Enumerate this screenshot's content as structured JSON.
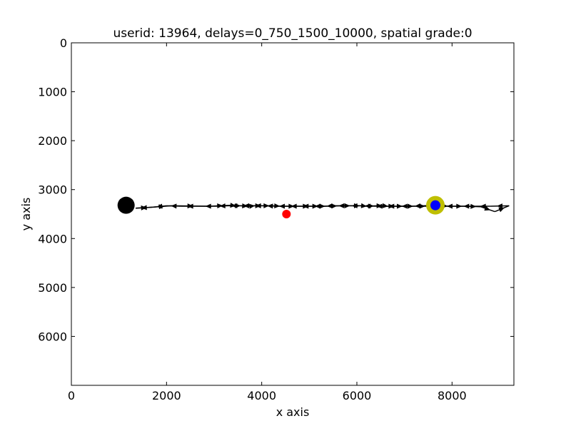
{
  "chart_data": {
    "type": "scatter",
    "title": "userid: 13964, delays=0_750_1500_10000, spatial grade:0",
    "xlabel": "x axis",
    "ylabel": "y axis",
    "xlim": [
      0,
      9300
    ],
    "ylim": [
      0,
      7000
    ],
    "y_inverted": true,
    "x_ticks": [
      "0",
      "2000",
      "4000",
      "6000",
      "8000"
    ],
    "y_ticks": [
      "0",
      "1000",
      "2000",
      "3000",
      "4000",
      "5000",
      "6000"
    ],
    "grid": false,
    "legend": "none",
    "trajectory": {
      "color": "#000000",
      "points": [
        [
          7650,
          3320
        ],
        [
          7400,
          3330
        ],
        [
          7150,
          3340
        ],
        [
          6850,
          3340
        ],
        [
          6600,
          3340
        ],
        [
          6350,
          3340
        ],
        [
          6100,
          3330
        ],
        [
          5800,
          3330
        ],
        [
          5550,
          3330
        ],
        [
          5300,
          3340
        ],
        [
          5050,
          3340
        ],
        [
          4800,
          3340
        ],
        [
          4550,
          3340
        ],
        [
          4300,
          3340
        ],
        [
          4050,
          3330
        ],
        [
          3800,
          3330
        ],
        [
          3550,
          3330
        ],
        [
          3300,
          3330
        ],
        [
          3050,
          3340
        ],
        [
          2700,
          3340
        ],
        [
          2300,
          3340
        ],
        [
          2000,
          3330
        ],
        [
          1700,
          3360
        ],
        [
          1350,
          3380
        ],
        [
          1350,
          3380
        ],
        [
          1700,
          3360
        ],
        [
          2100,
          3330
        ],
        [
          2900,
          3340
        ],
        [
          3350,
          3320
        ],
        [
          3450,
          3330
        ],
        [
          3550,
          3330
        ],
        [
          3750,
          3340
        ],
        [
          3850,
          3330
        ],
        [
          4000,
          3330
        ],
        [
          4200,
          3330
        ],
        [
          4450,
          3340
        ],
        [
          4800,
          3340
        ],
        [
          5050,
          3340
        ],
        [
          5200,
          3340
        ],
        [
          5350,
          3340
        ],
        [
          5700,
          3330
        ],
        [
          5900,
          3330
        ],
        [
          6100,
          3330
        ],
        [
          6200,
          3340
        ],
        [
          6400,
          3330
        ],
        [
          6550,
          3330
        ],
        [
          6650,
          3340
        ],
        [
          6800,
          3340
        ],
        [
          7000,
          3340
        ],
        [
          7250,
          3340
        ],
        [
          7500,
          3340
        ],
        [
          7700,
          3330
        ],
        [
          8000,
          3340
        ],
        [
          8300,
          3340
        ],
        [
          8600,
          3350
        ],
        [
          8900,
          3450
        ],
        [
          9200,
          3330
        ],
        [
          8800,
          3340
        ],
        [
          8500,
          3340
        ],
        [
          8100,
          3340
        ],
        [
          7800,
          3340
        ],
        [
          7650,
          3320
        ]
      ]
    },
    "markers": [
      {
        "name": "start",
        "x": 1150,
        "y": 3320,
        "color": "#000000"
      },
      {
        "name": "target",
        "x": 4520,
        "y": 3500,
        "color": "#ff0000"
      },
      {
        "name": "current-outer",
        "x": 7650,
        "y": 3320,
        "color": "#bfbf00"
      },
      {
        "name": "current-inner",
        "x": 7650,
        "y": 3320,
        "color": "#0000ff"
      }
    ]
  }
}
